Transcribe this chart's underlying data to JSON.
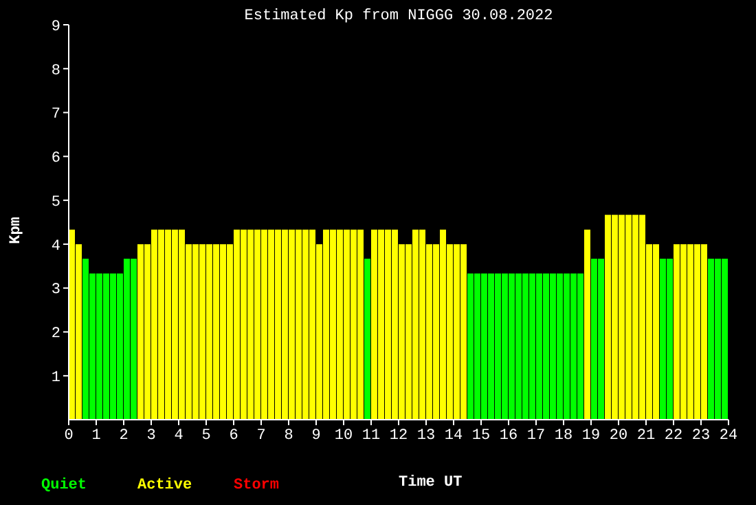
{
  "chart_data": {
    "type": "bar",
    "stacked": true,
    "title": "Estimated Kp from NIGGG 30.08.2022",
    "xlabel": "Time UT",
    "ylabel": "Kpm",
    "x": [
      0.125,
      0.375,
      0.625,
      0.875,
      1.125,
      1.375,
      1.625,
      1.875,
      2.125,
      2.375,
      2.625,
      2.875,
      3.125,
      3.375,
      3.625,
      3.875,
      4.125,
      4.375,
      4.625,
      4.875,
      5.125,
      5.375,
      5.625,
      5.875,
      6.125,
      6.375,
      6.625,
      6.875,
      7.125,
      7.375,
      7.625,
      7.875,
      8.125,
      8.375,
      8.625,
      8.875,
      9.125,
      9.375,
      9.625,
      9.875,
      10.125,
      10.375,
      10.625,
      10.875,
      11.125,
      11.375,
      11.625,
      11.875,
      12.125,
      12.375,
      12.625,
      12.875,
      13.125,
      13.375,
      13.625,
      13.875,
      14.125,
      14.375,
      14.625,
      14.875,
      15.125,
      15.375,
      15.625,
      15.875,
      16.125,
      16.375,
      16.625,
      16.875,
      17.125,
      17.375,
      17.625,
      17.875,
      18.125,
      18.375,
      18.625,
      18.875,
      19.125,
      19.375,
      19.625,
      19.875,
      20.125,
      20.375,
      20.625,
      20.875,
      21.125,
      21.375,
      21.625,
      21.875,
      22.125,
      22.375,
      22.625,
      22.875,
      23.125,
      23.375,
      23.625,
      23.875
    ],
    "series": [
      {
        "name": "Quiet",
        "color": "#00ff00",
        "values": [
          null,
          null,
          3.67,
          3.33,
          3.33,
          3.33,
          3.33,
          3.33,
          3.67,
          3.67,
          null,
          null,
          null,
          null,
          null,
          null,
          null,
          null,
          null,
          null,
          null,
          null,
          null,
          null,
          null,
          null,
          null,
          null,
          null,
          null,
          null,
          null,
          null,
          null,
          null,
          null,
          null,
          null,
          null,
          null,
          null,
          null,
          null,
          3.67,
          null,
          null,
          null,
          null,
          null,
          null,
          null,
          null,
          null,
          null,
          null,
          null,
          null,
          null,
          3.33,
          3.33,
          3.33,
          3.33,
          3.33,
          3.33,
          3.33,
          3.33,
          3.33,
          3.33,
          3.33,
          3.33,
          3.33,
          3.33,
          3.33,
          3.33,
          3.33,
          null,
          3.67,
          3.67,
          null,
          null,
          null,
          null,
          null,
          null,
          null,
          null,
          3.67,
          3.67,
          null,
          null,
          null,
          null,
          null,
          3.67,
          3.67,
          3.67
        ]
      },
      {
        "name": "Active",
        "color": "#ffff00",
        "values": [
          4.33,
          4,
          null,
          null,
          null,
          null,
          null,
          null,
          null,
          null,
          4,
          4,
          4.33,
          4.33,
          4.33,
          4.33,
          4.33,
          4,
          4,
          4,
          4,
          4,
          4,
          4,
          4.33,
          4.33,
          4.33,
          4.33,
          4.33,
          4.33,
          4.33,
          4.33,
          4.33,
          4.33,
          4.33,
          4.33,
          4,
          4.33,
          4.33,
          4.33,
          4.33,
          4.33,
          4.33,
          null,
          4.33,
          4.33,
          4.33,
          4.33,
          4,
          4,
          4.33,
          4.33,
          4,
          4,
          4.33,
          4,
          4,
          4,
          null,
          null,
          null,
          null,
          null,
          null,
          null,
          null,
          null,
          null,
          null,
          null,
          null,
          null,
          null,
          null,
          null,
          4.33,
          null,
          null,
          4.67,
          4.67,
          4.67,
          4.67,
          4.67,
          4.67,
          4,
          4,
          null,
          null,
          4,
          4,
          4,
          4,
          4,
          null,
          null,
          null
        ]
      },
      {
        "name": "Storm",
        "color": "#ff0000",
        "values": [
          null,
          null,
          null,
          null,
          null,
          null,
          null,
          null,
          null,
          null,
          null,
          null,
          null,
          null,
          null,
          null,
          null,
          null,
          null,
          null,
          null,
          null,
          null,
          null,
          null,
          null,
          null,
          null,
          null,
          null,
          null,
          null,
          null,
          null,
          null,
          null,
          null,
          null,
          null,
          null,
          null,
          null,
          null,
          null,
          null,
          null,
          null,
          null,
          null,
          null,
          null,
          null,
          null,
          null,
          null,
          null,
          null,
          null,
          null,
          null,
          null,
          null,
          null,
          null,
          null,
          null,
          null,
          null,
          null,
          null,
          null,
          null,
          null,
          null,
          null,
          null,
          null,
          null,
          null,
          null,
          null,
          null,
          null,
          null,
          null,
          null,
          null,
          null,
          null,
          null,
          null,
          null,
          null,
          null,
          null,
          null
        ]
      }
    ],
    "xlim": [
      0,
      24
    ],
    "xticks": [
      0,
      1,
      2,
      3,
      4,
      5,
      6,
      7,
      8,
      9,
      10,
      11,
      12,
      13,
      14,
      15,
      16,
      17,
      18,
      19,
      20,
      21,
      22,
      23,
      24
    ],
    "ylim": [
      0,
      9
    ],
    "yticks": [
      1,
      2,
      3,
      4,
      5,
      6,
      7,
      8,
      9
    ],
    "grid": false,
    "legend": "bottom left"
  }
}
